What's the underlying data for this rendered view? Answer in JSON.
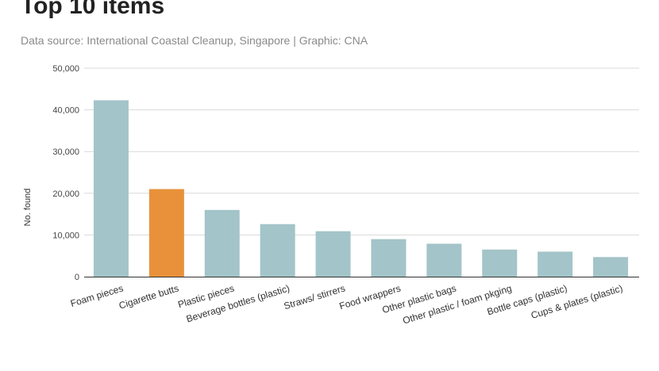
{
  "chart_data": {
    "type": "bar",
    "title": "Top 10 items",
    "subtitle": "Data source: International Coastal Cleanup, Singapore | Graphic: CNA",
    "categories": [
      "Foam pieces",
      "Cigarette butts",
      "Plastic pieces",
      "Beverage bottles (plastic)",
      "Straws/ stirrers",
      "Food wrappers",
      "Other plastic bags",
      "Other plastic / foam pkging",
      "Bottle caps (plastic)",
      "Cups & plates (plastic)"
    ],
    "values": [
      42300,
      21000,
      16000,
      12600,
      10900,
      9000,
      7900,
      6500,
      6000,
      4700
    ],
    "highlight_index": 1,
    "xlabel": "",
    "ylabel": "No. found",
    "ylim": [
      0,
      50000
    ],
    "yticks": [
      0,
      10000,
      20000,
      30000,
      40000,
      50000
    ],
    "ytick_labels": [
      "0",
      "10,000",
      "20,000",
      "30,000",
      "40,000",
      "50,000"
    ],
    "grid": true,
    "colors": {
      "bar": "#a3c4c8",
      "highlight": "#e8913a",
      "grid": "#d9d9d9",
      "axis": "#333333"
    }
  }
}
